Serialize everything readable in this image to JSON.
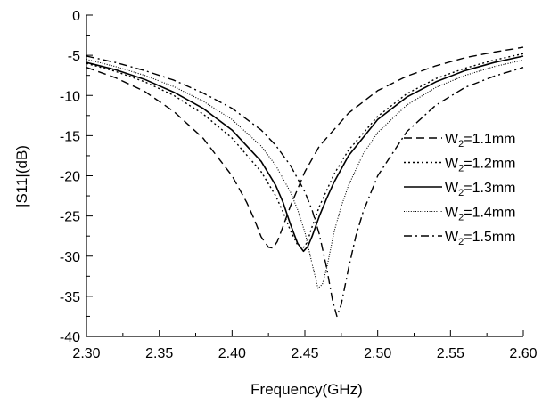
{
  "chart_data": {
    "type": "line",
    "xlabel": "Frequency(GHz)",
    "ylabel": "|S11|(dB)",
    "xlim": [
      2.3,
      2.6
    ],
    "ylim": [
      -40,
      0
    ],
    "x_ticks": [
      "2.30",
      "2.35",
      "2.40",
      "2.45",
      "2.50",
      "2.55",
      "2.60"
    ],
    "y_ticks": [
      "0",
      "-5",
      "-10",
      "-15",
      "-20",
      "-25",
      "-30",
      "-35",
      "-40"
    ],
    "grid": false,
    "legend_position": "right",
    "series": [
      {
        "name_main": "W",
        "name_sub": "2",
        "name_rest": "=1.1mm",
        "style": "dashed",
        "x": [
          2.3,
          2.32,
          2.34,
          2.36,
          2.38,
          2.4,
          2.41,
          2.415,
          2.42,
          2.425,
          2.428,
          2.431,
          2.435,
          2.44,
          2.45,
          2.46,
          2.48,
          2.5,
          2.52,
          2.54,
          2.56,
          2.58,
          2.6
        ],
        "values": [
          -6.5,
          -7.8,
          -9.5,
          -12.0,
          -15.3,
          -20.0,
          -23.3,
          -25.3,
          -27.6,
          -28.9,
          -29.0,
          -28.2,
          -26.3,
          -23.8,
          -19.5,
          -16.3,
          -12.2,
          -9.4,
          -7.6,
          -6.3,
          -5.3,
          -4.6,
          -4.0
        ]
      },
      {
        "name_main": "W",
        "name_sub": "2",
        "name_rest": "=1.2mm",
        "style": "dotted",
        "x": [
          2.3,
          2.32,
          2.34,
          2.36,
          2.38,
          2.4,
          2.42,
          2.43,
          2.435,
          2.44,
          2.445,
          2.448,
          2.45,
          2.452,
          2.455,
          2.46,
          2.47,
          2.48,
          2.5,
          2.52,
          2.54,
          2.56,
          2.58,
          2.6
        ],
        "values": [
          -6.0,
          -7.0,
          -8.3,
          -10.0,
          -12.3,
          -15.3,
          -19.5,
          -22.5,
          -24.5,
          -26.8,
          -28.6,
          -29.0,
          -28.8,
          -28.0,
          -26.3,
          -23.8,
          -19.8,
          -16.8,
          -12.6,
          -9.8,
          -7.9,
          -6.6,
          -5.6,
          -4.8
        ]
      },
      {
        "name_main": "W",
        "name_sub": "2",
        "name_rest": "=1.3mm",
        "style": "solid",
        "x": [
          2.3,
          2.32,
          2.34,
          2.36,
          2.38,
          2.4,
          2.42,
          2.43,
          2.435,
          2.44,
          2.445,
          2.449,
          2.452,
          2.455,
          2.46,
          2.465,
          2.47,
          2.48,
          2.5,
          2.52,
          2.54,
          2.56,
          2.58,
          2.6
        ],
        "values": [
          -5.9,
          -6.8,
          -8.0,
          -9.6,
          -11.6,
          -14.3,
          -18.2,
          -21.2,
          -23.3,
          -26.0,
          -28.4,
          -29.4,
          -28.8,
          -27.5,
          -25.0,
          -22.8,
          -20.8,
          -17.5,
          -13.0,
          -10.2,
          -8.3,
          -6.9,
          -5.9,
          -5.1
        ]
      },
      {
        "name_main": "W",
        "name_sub": "2",
        "name_rest": "=1.4mm",
        "style": "dotted-fine",
        "x": [
          2.3,
          2.32,
          2.34,
          2.36,
          2.38,
          2.4,
          2.42,
          2.43,
          2.44,
          2.445,
          2.45,
          2.455,
          2.459,
          2.462,
          2.465,
          2.47,
          2.475,
          2.48,
          2.49,
          2.5,
          2.52,
          2.54,
          2.56,
          2.58,
          2.6
        ],
        "values": [
          -5.5,
          -6.4,
          -7.5,
          -8.9,
          -10.7,
          -13.0,
          -16.3,
          -18.7,
          -22.0,
          -24.2,
          -27.0,
          -31.0,
          -34.0,
          -33.5,
          -31.5,
          -27.0,
          -23.8,
          -21.2,
          -17.3,
          -14.6,
          -11.2,
          -9.0,
          -7.5,
          -6.4,
          -5.6
        ]
      },
      {
        "name_main": "W",
        "name_sub": "2",
        "name_rest": "=1.5mm",
        "style": "dashdot",
        "x": [
          2.3,
          2.32,
          2.34,
          2.36,
          2.38,
          2.4,
          2.42,
          2.43,
          2.44,
          2.45,
          2.455,
          2.46,
          2.465,
          2.469,
          2.472,
          2.475,
          2.48,
          2.485,
          2.49,
          2.5,
          2.52,
          2.54,
          2.56,
          2.58,
          2.6
        ],
        "values": [
          -5.1,
          -5.9,
          -6.9,
          -8.1,
          -9.7,
          -11.6,
          -14.3,
          -16.2,
          -18.7,
          -22.0,
          -24.3,
          -27.3,
          -31.5,
          -35.5,
          -37.5,
          -36.0,
          -31.5,
          -27.5,
          -24.5,
          -20.0,
          -14.5,
          -11.2,
          -9.0,
          -7.6,
          -6.5
        ]
      }
    ]
  }
}
